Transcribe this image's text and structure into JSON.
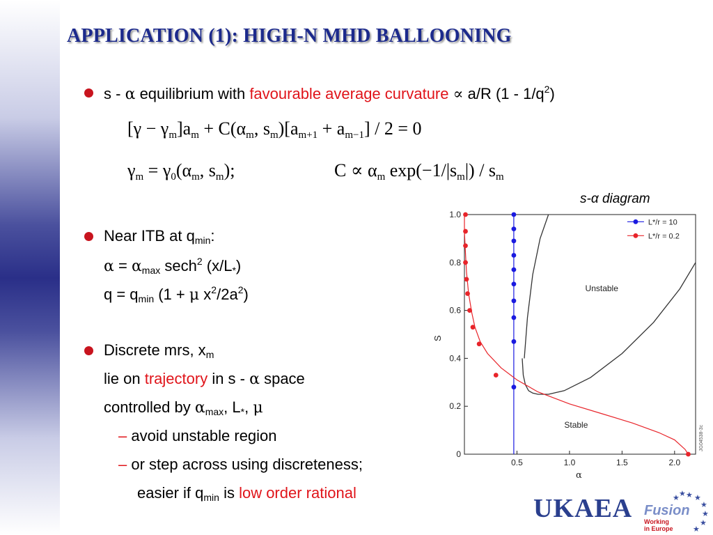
{
  "title": "APPLICATION (1): HIGH-N MHD BALLOONING",
  "bullet1": {
    "s": "s -",
    "alpha": "α",
    "text1": "equilibrium with",
    "red": "favourable average curvature",
    "prop": "∝",
    "text2": "a/R (1 - 1/q",
    "sup": "2",
    "close": ")"
  },
  "eq1": {
    "p1": "[γ − γ",
    "m": "m",
    "p2": "]a",
    "p3": " + C(α",
    "p4": ", s",
    "p5": ")[a",
    "mp1": "m+1",
    "p6": " + a",
    "mm1": "m−1",
    "p7": "] / 2 = 0"
  },
  "eq2": {
    "a1": "γ",
    "m": "m",
    "a2": " = γ",
    "zero": "0",
    "a3": "(α",
    "a4": ", s",
    "a5": ");",
    "b1": "C ∝ α",
    "b2": " exp(−1/|s",
    "b3": "|) / s"
  },
  "bullet2": {
    "l1a": "Near ITB at q",
    "l1sub": "min",
    "l1b": ":",
    "l2alpha": "α",
    "l2eq": " = ",
    "l2alpha2": "α",
    "l2sub": "max",
    "l2a": " sech",
    "l2sup": "2",
    "l2b": " (x/L",
    "l2sub2": "*",
    "l2c": ")",
    "l3a": "q = q",
    "l3sub": "min",
    "l3b": " (1 + ",
    "l3mu": "μ",
    "l3c": " x",
    "l3sup": "2",
    "l3d": "/2a",
    "l3sup2": "2",
    "l3e": ")"
  },
  "bullet3": {
    "l1a": "Discrete mrs, x",
    "l1sub": "m",
    "l2a": "lie on ",
    "l2red": "trajectory",
    "l2b": " in s - ",
    "l2alpha": "α",
    "l2c": " space",
    "l3a": "controlled by ",
    "l3alpha": "α",
    "l3sub": "max",
    "l3b": ", L",
    "l3sub2": "*",
    "l3c": ", ",
    "l3mu": "μ",
    "dash": "–",
    "d1": "avoid unstable region",
    "d2": "or step across using discreteness;",
    "d3a": "easier if q",
    "d3sub": "min",
    "d3b": " is ",
    "d3red": "low order rational"
  },
  "chart_caption": "s-α diagram",
  "chart_data": {
    "type": "line",
    "xlabel": "α",
    "ylabel": "S",
    "xlim": [
      0,
      2.2
    ],
    "ylim": [
      0,
      1.0
    ],
    "xticks": [
      "0.5",
      "1.0",
      "1.5",
      "2.0"
    ],
    "yticks": [
      "0",
      "0.2",
      "0.4",
      "0.6",
      "0.8",
      "1.0"
    ],
    "grid": false,
    "legend": "top-right",
    "region_labels": [
      "Unstable",
      "Stable"
    ],
    "figure_id": "JG04538-3c",
    "colors": {
      "series1": "#1a1ae0",
      "series2": "#e8242a",
      "boundary": "#333333"
    },
    "boundary": {
      "x": [
        0.55,
        0.56,
        0.58,
        0.61,
        0.65,
        0.7,
        0.8,
        0.95,
        1.2,
        1.5,
        1.8,
        2.05,
        2.2
      ],
      "y": [
        0.4,
        0.33,
        0.29,
        0.265,
        0.255,
        0.25,
        0.25,
        0.265,
        0.32,
        0.42,
        0.55,
        0.69,
        0.8
      ]
    },
    "boundary_upper": {
      "x": [
        0.57,
        0.6,
        0.65,
        0.72,
        0.8
      ],
      "y": [
        0.4,
        0.57,
        0.75,
        0.9,
        1.0
      ]
    },
    "series": [
      {
        "name": "L*/r = 10",
        "x": [
          0.47,
          0.47,
          0.47,
          0.47,
          0.47,
          0.47,
          0.47,
          0.47,
          0.47,
          0.47
        ],
        "y": [
          1.0,
          0.94,
          0.89,
          0.83,
          0.77,
          0.71,
          0.64,
          0.57,
          0.47,
          0.28
        ],
        "line_x": [
          0.47,
          0.47
        ],
        "line_y": [
          0.0,
          1.0
        ]
      },
      {
        "name": "L*/r = 0.2",
        "x": [
          0.01,
          0.01,
          0.01,
          0.01,
          0.02,
          0.03,
          0.05,
          0.08,
          0.14,
          0.3,
          2.13
        ],
        "y": [
          1.0,
          0.93,
          0.87,
          0.8,
          0.73,
          0.67,
          0.6,
          0.53,
          0.46,
          0.33,
          0.0
        ],
        "line_x": [
          0.0,
          0.0,
          0.01,
          0.02,
          0.04,
          0.07,
          0.1,
          0.15,
          0.22,
          0.35,
          0.5,
          0.7,
          1.0,
          1.3,
          1.6,
          1.85,
          2.0,
          2.1,
          2.13
        ],
        "line_y": [
          1.0,
          0.93,
          0.84,
          0.76,
          0.67,
          0.59,
          0.53,
          0.47,
          0.42,
          0.36,
          0.31,
          0.26,
          0.21,
          0.17,
          0.13,
          0.09,
          0.06,
          0.02,
          0.0
        ]
      }
    ]
  },
  "footer": {
    "ukaea": "UKAEA",
    "fusion": "Fusion",
    "working": "Working",
    "in_europe": "in Europe"
  }
}
